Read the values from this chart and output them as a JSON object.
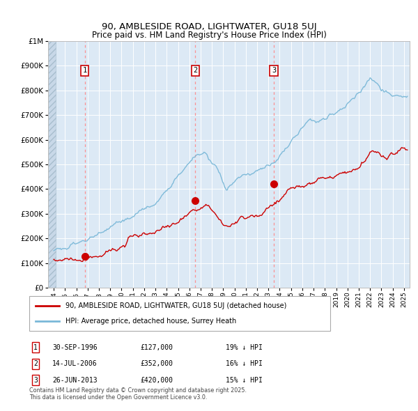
{
  "title": "90, AMBLESIDE ROAD, LIGHTWATER, GU18 5UJ",
  "subtitle": "Price paid vs. HM Land Registry's House Price Index (HPI)",
  "legend_line1": "90, AMBLESIDE ROAD, LIGHTWATER, GU18 5UJ (detached house)",
  "legend_line2": "HPI: Average price, detached house, Surrey Heath",
  "footnote": "Contains HM Land Registry data © Crown copyright and database right 2025.\nThis data is licensed under the Open Government Licence v3.0.",
  "transactions": [
    {
      "num": 1,
      "date": "30-SEP-1996",
      "price": 127000,
      "hpi_diff": "19% ↓ HPI",
      "x_year": 1996.75
    },
    {
      "num": 2,
      "date": "14-JUL-2006",
      "price": 352000,
      "hpi_diff": "16% ↓ HPI",
      "x_year": 2006.54
    },
    {
      "num": 3,
      "date": "26-JUN-2013",
      "price": 420000,
      "hpi_diff": "15% ↓ HPI",
      "x_year": 2013.48
    }
  ],
  "hpi_color": "#7ab8d8",
  "price_color": "#cc0000",
  "vline_color": "#ff8888",
  "marker_color": "#cc0000",
  "box_color": "#cc0000",
  "ylim": [
    0,
    1000000
  ],
  "xlim_start": 1993.5,
  "xlim_end": 2025.5,
  "background_color": "#dce9f5",
  "hatch_facecolor": "#c8d8e8"
}
